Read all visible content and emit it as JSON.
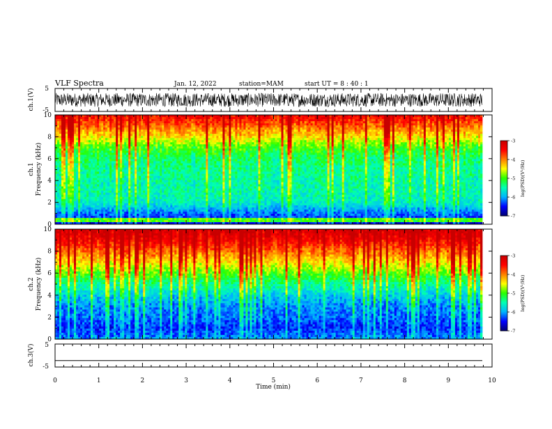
{
  "header": {
    "title": "VLF Spectra",
    "date": "Jan. 12, 2022",
    "station": "station=MAM",
    "start": "start UT =  8 : 40 : 1"
  },
  "chart_data": [
    {
      "type": "line",
      "panel": "ch1-waveform",
      "ylabel": "ch.1(V)",
      "ylim": [
        -5,
        5
      ],
      "y_ticks": [
        -5,
        5
      ],
      "xlim": [
        0,
        10
      ],
      "description_values": {
        "amplitude_range_v": [
          -3,
          3
        ]
      }
    },
    {
      "type": "heatmap",
      "panel": "ch1-spectrogram",
      "ylabel_line1": "ch.1",
      "ylabel_line2": "Frequency (kHz)",
      "ylim": [
        0,
        10
      ],
      "y_ticks": [
        "0",
        "2",
        "4",
        "6",
        "8",
        "10"
      ],
      "xlim": [
        0,
        10
      ],
      "colorbar": {
        "label": "log(PSD)(V²/Hz)",
        "range": [
          -7,
          -3
        ],
        "ticks": [
          "-3",
          "-4",
          "-5",
          "-6",
          "-7"
        ]
      },
      "base_levels": [
        -6.5,
        -6.2,
        -5.6,
        -5.5,
        -5.5,
        -5.4,
        -5.3,
        -5.0,
        -4.4,
        -3.9,
        -3.4
      ]
    },
    {
      "type": "heatmap",
      "panel": "ch2-spectrogram",
      "ylabel_line1": "ch.2",
      "ylabel_line2": "Frequency (kHz)",
      "ylim": [
        0,
        10
      ],
      "y_ticks": [
        "0",
        "2",
        "4",
        "6",
        "8",
        "10"
      ],
      "xlim": [
        0,
        10
      ],
      "colorbar": {
        "label": "log(PSD)(V²/Hz)",
        "range": [
          -7,
          -3
        ],
        "ticks": [
          "-3",
          "-4",
          "-5",
          "-6",
          "-7"
        ]
      },
      "base_levels": [
        -6.1,
        -6.4,
        -6.2,
        -6.1,
        -5.8,
        -5.4,
        -4.9,
        -4.4,
        -3.9,
        -3.4,
        -3.1
      ]
    },
    {
      "type": "line",
      "panel": "ch3-waveform",
      "ylabel": "ch.3(V)",
      "ylim": [
        -5,
        5
      ],
      "y_ticks": [
        -5,
        5
      ],
      "xlim": [
        0,
        10
      ],
      "x_ticks": [
        "0",
        "1",
        "2",
        "3",
        "4",
        "5",
        "6",
        "7",
        "8",
        "9",
        "10"
      ],
      "xlabel": "Time (min)",
      "values": [
        -2.2,
        -2.2
      ]
    }
  ],
  "colors": {
    "scale": [
      "#000070",
      "#0000ff",
      "#00b4ff",
      "#00ffb4",
      "#28ff00",
      "#ffff00",
      "#ff8000",
      "#ff0000",
      "#c80000"
    ]
  }
}
